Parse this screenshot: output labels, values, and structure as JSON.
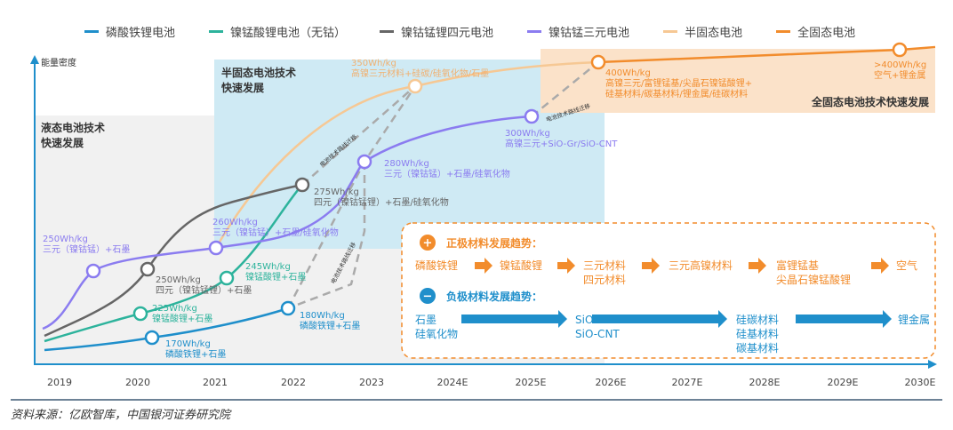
{
  "legend": [
    {
      "label": "磷酸铁锂电池",
      "color": "#1f8fcb"
    },
    {
      "label": "镍锰酸锂电池（无钴）",
      "color": "#2db39c"
    },
    {
      "label": "镍钴锰锂四元电池",
      "color": "#666666"
    },
    {
      "label": "镍钴锰三元电池",
      "color": "#8b7cf0"
    },
    {
      "label": "半固态电池",
      "color": "#f6c894"
    },
    {
      "label": "全固态电池",
      "color": "#f28c2c"
    }
  ],
  "y_axis_label": "能量密度",
  "x_axis": [
    "2019",
    "2020",
    "2021",
    "2022",
    "2023",
    "2024E",
    "2025E",
    "2026E",
    "2027E",
    "2028E",
    "2029E",
    "2030E"
  ],
  "regions": {
    "liquid": "液态电池技术|快速发展",
    "semi": "半固态电池技术|快速发展",
    "solid": "全固态电池技术快速发展"
  },
  "migration_label": "电池技术路线迁移",
  "nodes": {
    "lfp1": {
      "wh": "170Wh/kg",
      "desc": "磷酸铁锂+石墨"
    },
    "lfp2": {
      "wh": "180Wh/kg",
      "desc": "磷酸铁锂+石墨"
    },
    "lmfp1": {
      "wh": "225Wh/kg",
      "desc": "镍锰酸锂+石墨"
    },
    "lmfp2": {
      "wh": "245Wh/kg",
      "desc": "镍锰酸锂+石墨"
    },
    "quad1": {
      "wh": "250Wh/kg",
      "desc": "四元（镍钴锰锂）+石墨"
    },
    "quad2": {
      "wh": "275Wh/kg",
      "desc": "四元（镍钴锰锂）+石墨/硅氧化物"
    },
    "tern1": {
      "wh": "250Wh/kg",
      "desc": "三元（镍钴锰）+石墨"
    },
    "tern2": {
      "wh": "260Wh/kg",
      "desc": "三元（镍钴锰）+石墨/硅氧化物"
    },
    "tern3": {
      "wh": "280Wh/kg",
      "desc": "三元（镍钴锰）+石墨/硅氧化物"
    },
    "tern4": {
      "wh": "300Wh/kg",
      "desc": "高镍三元+SiO-Gr/SiO-CNT"
    },
    "semi1": {
      "wh": "350Wh/kg",
      "desc": "高镍三元材料+硅碳/硅氧化物/石墨"
    },
    "solid1": {
      "wh": "400Wh/kg",
      "desc": "高镍三元/富锂锰基/尖晶石镍锰酸锂+",
      "desc2": "硅基材料/碳基材料/锂金属/硅碳材料"
    },
    "solid2": {
      "wh": ">400Wh/kg",
      "desc": "空气+锂金属"
    }
  },
  "trends": {
    "cathode_title": "正极材料发展趋势：",
    "cathode": [
      "磷酸铁锂",
      "镍锰酸锂",
      "三元材料|四元材料",
      "三元高镍材料",
      "富锂锰基|尖晶石镍锰酸锂",
      "空气"
    ],
    "anode_title": "负极材料发展趋势：",
    "anode": [
      "石墨|硅氧化物",
      "SiO-Gr|SiO-CNT",
      "硅碳材料|硅基材料|碳基材料",
      "锂金属"
    ]
  },
  "source": "资料来源：亿欧智库，中国银河证券研究院"
}
